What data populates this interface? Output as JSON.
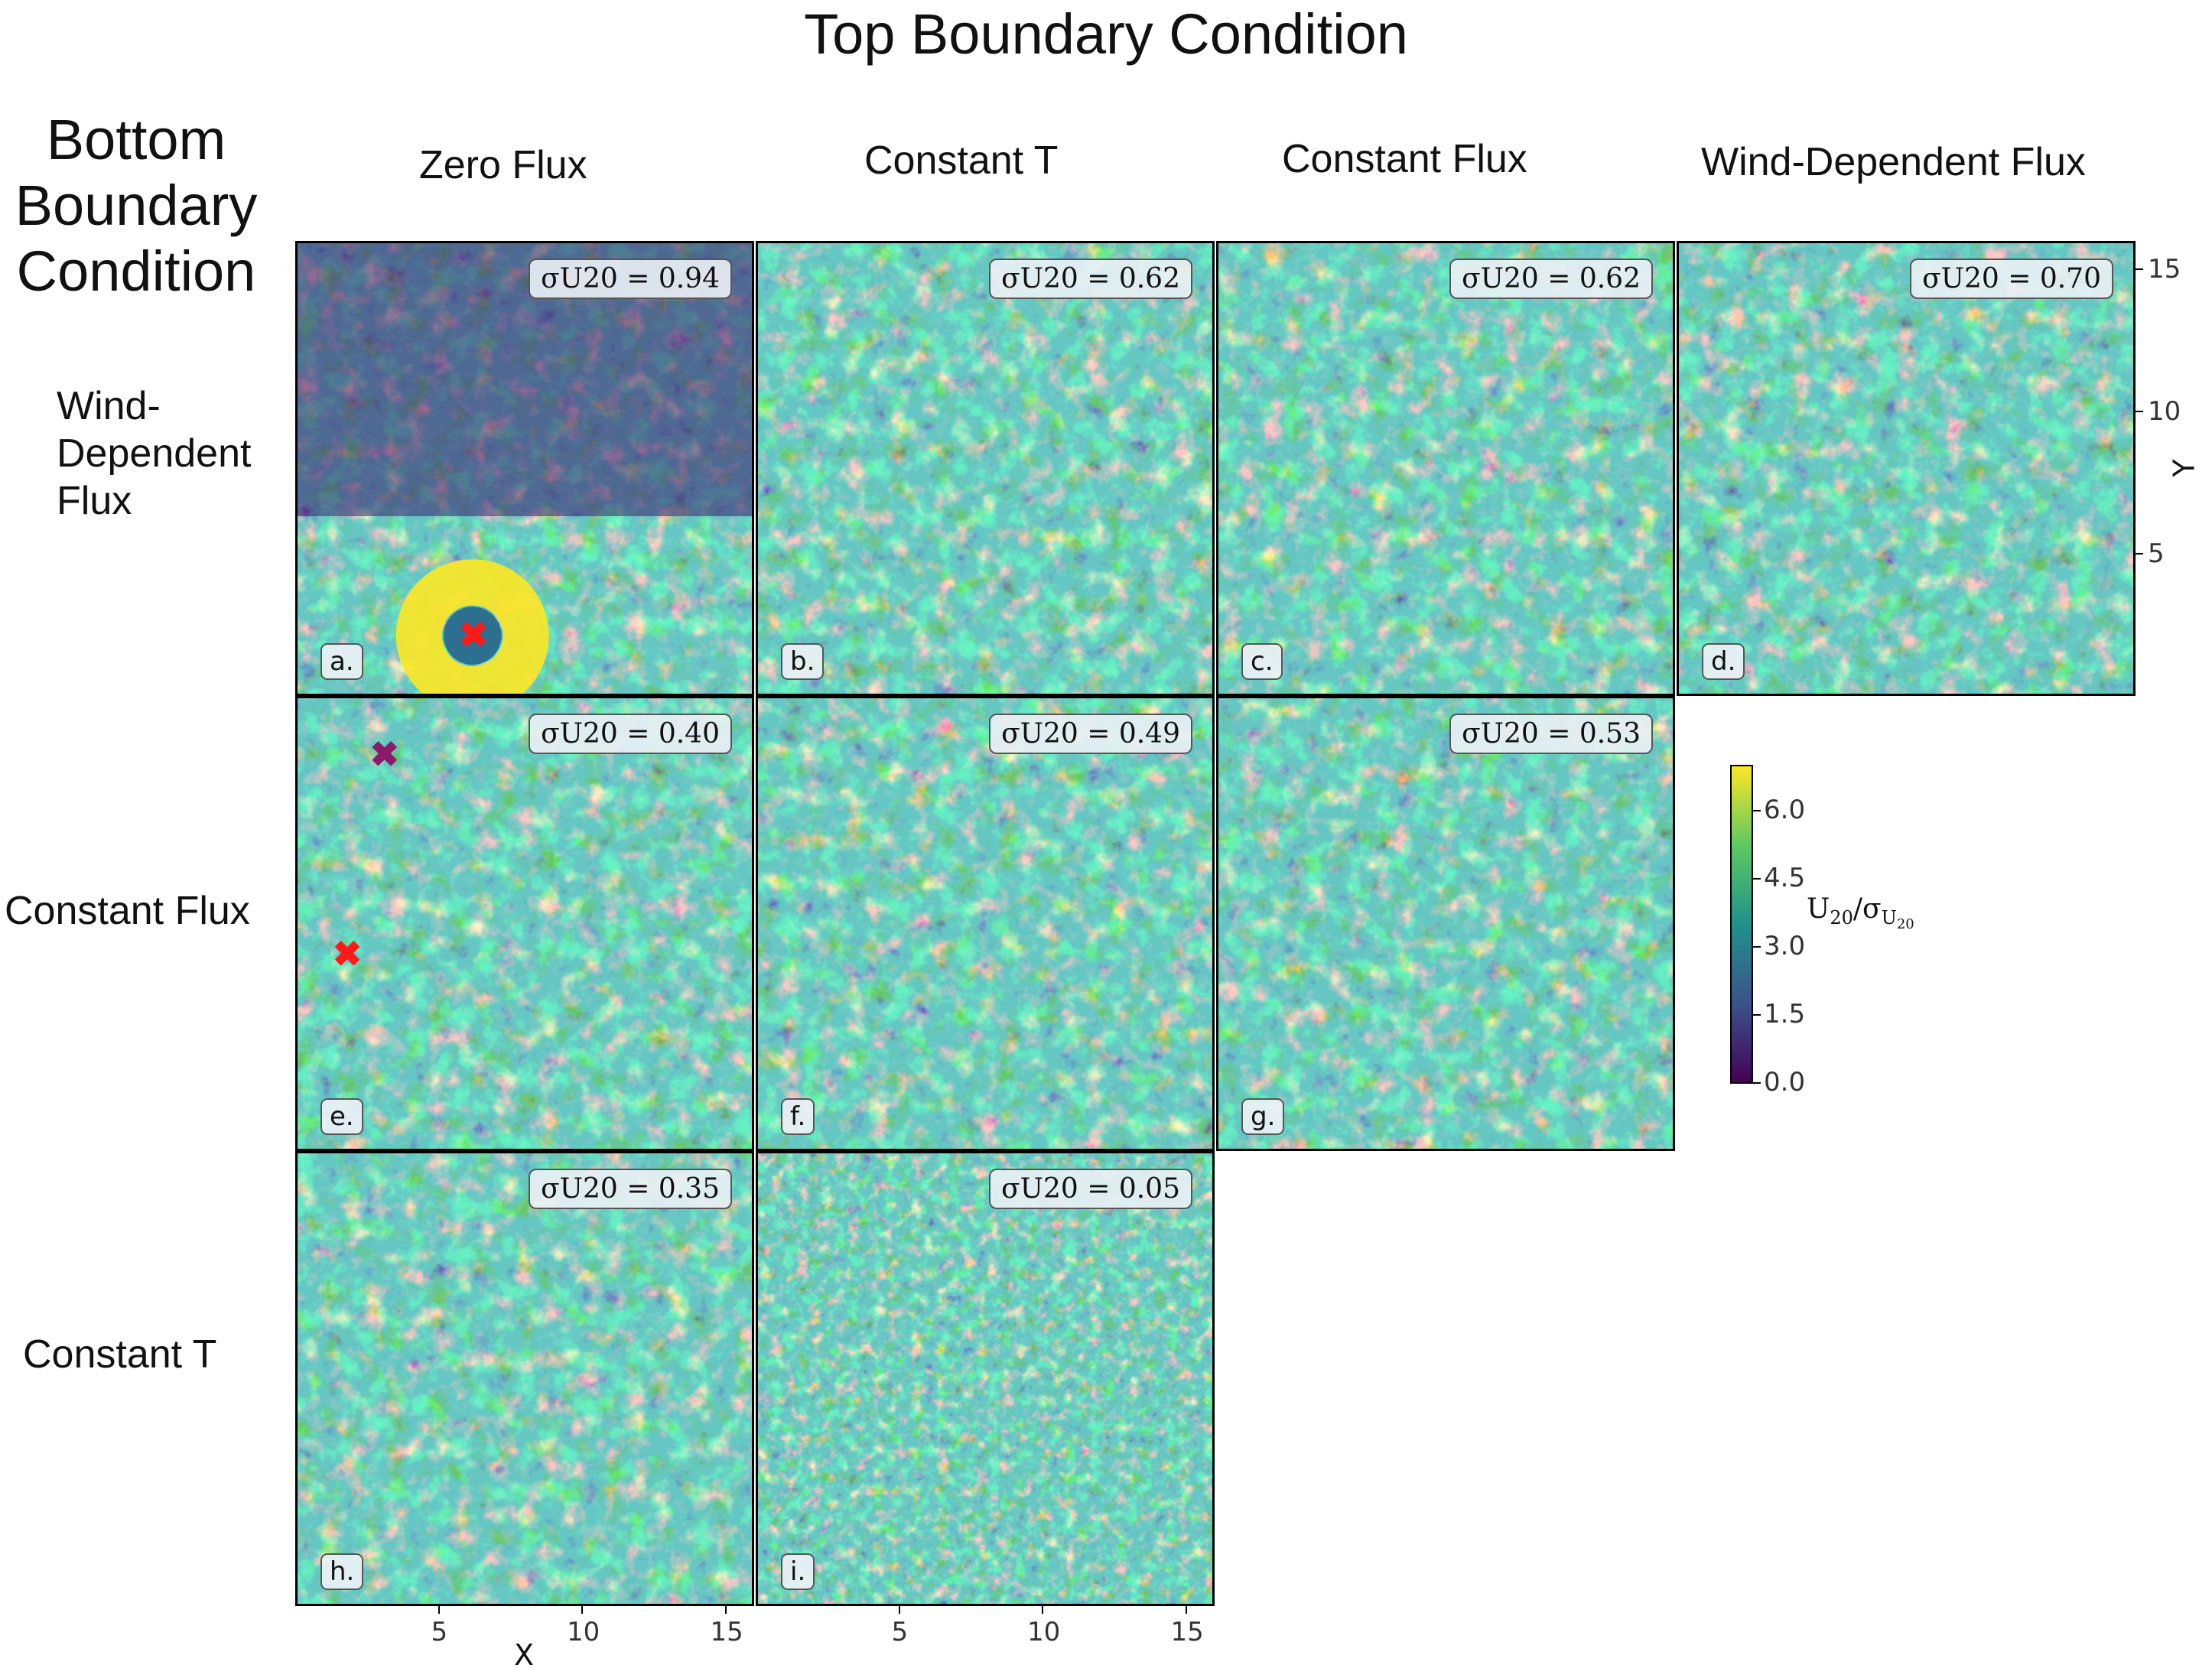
{
  "title": "Top Boundary Condition",
  "row_header": "Bottom Boundary Condition",
  "row_header_lines": [
    "Bottom",
    "Boundary",
    "Condition"
  ],
  "columns": [
    "Zero Flux",
    "Constant T",
    "Constant Flux",
    "Wind-Dependent Flux"
  ],
  "rows": [
    "Wind-Dependent Flux",
    "Constant Flux",
    "Constant T"
  ],
  "row_lines": [
    [
      "Wind-",
      "Dependent",
      "Flux"
    ],
    [
      "Constant Flux"
    ],
    [
      "Constant T"
    ]
  ],
  "colors": {
    "viridis_low": "#440154",
    "viridis_mid": "#21918c",
    "viridis_high": "#fde725",
    "marker_red": "#ff1a1a",
    "marker_purple": "#8b1a6b"
  },
  "chart_data": {
    "type": "heatmap",
    "title": "Top Boundary Condition",
    "xlabel": "X",
    "ylabel": "Y",
    "xlim": [
      0,
      16
    ],
    "ylim": [
      0,
      16
    ],
    "x_ticks": [
      5,
      10,
      15
    ],
    "y_ticks": [
      5,
      10,
      15
    ],
    "colorbar": {
      "label": "U20/σU20",
      "ticks": [
        0.0,
        1.5,
        3.0,
        4.5,
        6.0
      ],
      "range": [
        0,
        7
      ],
      "colormap": "viridis"
    },
    "panels": [
      {
        "label": "a.",
        "row": "Wind-Dependent Flux",
        "column": "Zero Flux",
        "sigma": 0.94,
        "sigma_text": "σU20 = 0.94",
        "markers": [
          {
            "x": 6.1,
            "y": 2.2,
            "color": "red"
          }
        ]
      },
      {
        "label": "b.",
        "row": "Wind-Dependent Flux",
        "column": "Constant T",
        "sigma": 0.62,
        "sigma_text": "σU20 = 0.62",
        "markers": []
      },
      {
        "label": "c.",
        "row": "Wind-Dependent Flux",
        "column": "Constant Flux",
        "sigma": 0.62,
        "sigma_text": "σU20 = 0.62",
        "markers": []
      },
      {
        "label": "d.",
        "row": "Wind-Dependent Flux",
        "column": "Wind-Dependent Flux",
        "sigma": 0.7,
        "sigma_text": "σU20 = 0.70",
        "markers": []
      },
      {
        "label": "e.",
        "row": "Constant Flux",
        "column": "Zero Flux",
        "sigma": 0.4,
        "sigma_text": "σU20 = 0.40",
        "markers": [
          {
            "x": 3.0,
            "y": 14.0,
            "color": "purple"
          },
          {
            "x": 1.7,
            "y": 7.0,
            "color": "red"
          }
        ]
      },
      {
        "label": "f.",
        "row": "Constant Flux",
        "column": "Constant T",
        "sigma": 0.49,
        "sigma_text": "σU20 = 0.49",
        "markers": []
      },
      {
        "label": "g.",
        "row": "Constant Flux",
        "column": "Constant Flux",
        "sigma": 0.53,
        "sigma_text": "σU20 = 0.53",
        "markers": []
      },
      {
        "label": "h.",
        "row": "Constant T",
        "column": "Zero Flux",
        "sigma": 0.35,
        "sigma_text": "σU20 = 0.35",
        "markers": []
      },
      {
        "label": "i.",
        "row": "Constant T",
        "column": "Constant T",
        "sigma": 0.05,
        "sigma_text": "σU20 = 0.05",
        "markers": []
      }
    ]
  }
}
